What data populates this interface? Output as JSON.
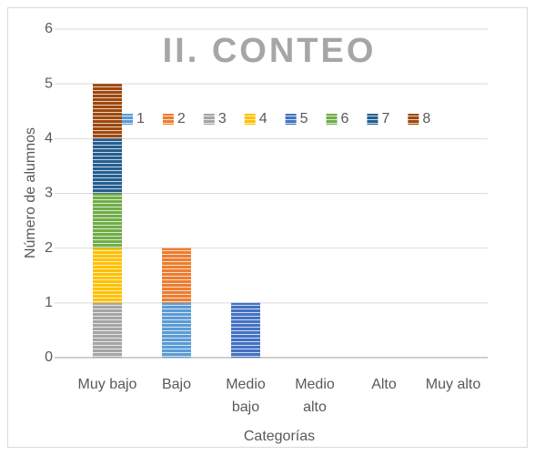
{
  "chart_data": {
    "type": "stacked_bar",
    "title": "II. CONTEO",
    "x_label": "Categorías",
    "y_label": "Número de alumnos",
    "categories": [
      "Muy bajo",
      "Bajo",
      "Medio bajo",
      "Medio alto",
      "Alto",
      "Muy alto"
    ],
    "series": [
      {
        "name": "1",
        "color": "#5b9bd5",
        "values": [
          0,
          1,
          0,
          0,
          0,
          0
        ]
      },
      {
        "name": "2",
        "color": "#ed7d31",
        "values": [
          0,
          1,
          0,
          0,
          0,
          0
        ]
      },
      {
        "name": "3",
        "color": "#a5a5a5",
        "values": [
          1,
          0,
          0,
          0,
          0,
          0
        ]
      },
      {
        "name": "4",
        "color": "#ffc000",
        "values": [
          1,
          0,
          0,
          0,
          0,
          0
        ]
      },
      {
        "name": "5",
        "color": "#4472c4",
        "values": [
          0,
          0,
          1,
          0,
          0,
          0
        ]
      },
      {
        "name": "6",
        "color": "#70ad47",
        "values": [
          1,
          0,
          0,
          0,
          0,
          0
        ]
      },
      {
        "name": "7",
        "color": "#255e91",
        "values": [
          1,
          0,
          0,
          0,
          0,
          0
        ]
      },
      {
        "name": "8",
        "color": "#9e480e",
        "values": [
          1,
          0,
          0,
          0,
          0,
          0
        ]
      }
    ],
    "ylim": [
      0,
      6
    ],
    "yticks": [
      0,
      1,
      2,
      3,
      4,
      5,
      6
    ],
    "grid": true,
    "legend": "top"
  }
}
